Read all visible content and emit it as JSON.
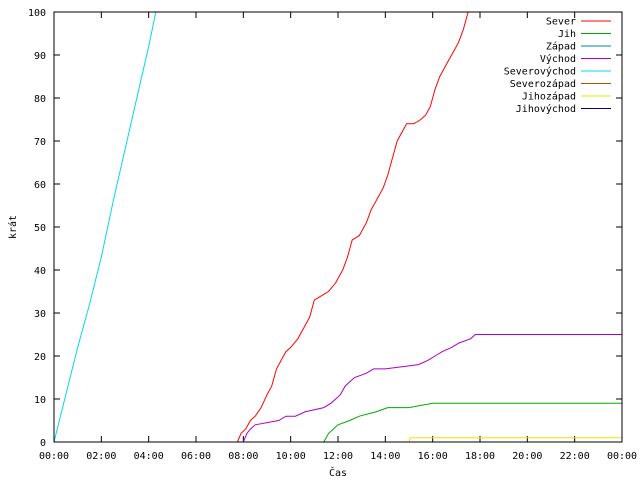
{
  "chart_data": {
    "type": "line",
    "xlabel": "Čas",
    "ylabel": "krát",
    "xlim": [
      0,
      24
    ],
    "ylim": [
      0,
      100
    ],
    "xticks": [
      {
        "value": 0,
        "label": "00:00"
      },
      {
        "value": 2,
        "label": "02:00"
      },
      {
        "value": 4,
        "label": "04:00"
      },
      {
        "value": 6,
        "label": "06:00"
      },
      {
        "value": 8,
        "label": "08:00"
      },
      {
        "value": 10,
        "label": "10:00"
      },
      {
        "value": 12,
        "label": "12:00"
      },
      {
        "value": 14,
        "label": "14:00"
      },
      {
        "value": 16,
        "label": "16:00"
      },
      {
        "value": 18,
        "label": "18:00"
      },
      {
        "value": 20,
        "label": "20:00"
      },
      {
        "value": 22,
        "label": "22:00"
      },
      {
        "value": 24,
        "label": "00:00"
      }
    ],
    "yticks": [
      0,
      10,
      20,
      30,
      40,
      50,
      60,
      70,
      80,
      90,
      100
    ],
    "grid": false,
    "legend_position": "top-right",
    "series": [
      {
        "name": "Sever",
        "color": "#ff0000",
        "points": [
          [
            0,
            0
          ],
          [
            7.75,
            0
          ],
          [
            7.9,
            2
          ],
          [
            8.1,
            3
          ],
          [
            8.3,
            5
          ],
          [
            8.5,
            6
          ],
          [
            8.75,
            8
          ],
          [
            9.0,
            11
          ],
          [
            9.2,
            13
          ],
          [
            9.4,
            17
          ],
          [
            9.6,
            19
          ],
          [
            9.8,
            21
          ],
          [
            10.0,
            22
          ],
          [
            10.3,
            24
          ],
          [
            10.6,
            27
          ],
          [
            10.8,
            29
          ],
          [
            11.0,
            33
          ],
          [
            11.3,
            34
          ],
          [
            11.6,
            35
          ],
          [
            11.9,
            37
          ],
          [
            12.2,
            40
          ],
          [
            12.4,
            43
          ],
          [
            12.6,
            47
          ],
          [
            12.9,
            48
          ],
          [
            13.2,
            51
          ],
          [
            13.4,
            54
          ],
          [
            13.6,
            56
          ],
          [
            13.9,
            59
          ],
          [
            14.1,
            62
          ],
          [
            14.3,
            66
          ],
          [
            14.5,
            70
          ],
          [
            14.7,
            72
          ],
          [
            14.9,
            74
          ],
          [
            15.2,
            74
          ],
          [
            15.5,
            75
          ],
          [
            15.7,
            76
          ],
          [
            15.9,
            78
          ],
          [
            16.1,
            82
          ],
          [
            16.3,
            85
          ],
          [
            16.5,
            87
          ],
          [
            16.7,
            89
          ],
          [
            16.9,
            91
          ],
          [
            17.1,
            93
          ],
          [
            17.3,
            96
          ],
          [
            17.45,
            99
          ],
          [
            17.5,
            100
          ]
        ]
      },
      {
        "name": "Jih",
        "color": "#00aa00",
        "points": [
          [
            0,
            0
          ],
          [
            11.4,
            0
          ],
          [
            11.5,
            1
          ],
          [
            11.6,
            2
          ],
          [
            11.8,
            3
          ],
          [
            12.0,
            4
          ],
          [
            12.5,
            5
          ],
          [
            12.9,
            6
          ],
          [
            13.6,
            7
          ],
          [
            14.1,
            8
          ],
          [
            15.0,
            8
          ],
          [
            16.0,
            9
          ],
          [
            24,
            9
          ]
        ]
      },
      {
        "name": "Západ",
        "color": "#0088a8",
        "points": []
      },
      {
        "name": "Východ",
        "color": "#aa00cc",
        "points": [
          [
            0,
            0
          ],
          [
            8.0,
            0
          ],
          [
            8.15,
            2
          ],
          [
            8.3,
            3
          ],
          [
            8.5,
            4
          ],
          [
            9.5,
            5
          ],
          [
            9.8,
            6
          ],
          [
            10.2,
            6
          ],
          [
            10.6,
            7
          ],
          [
            11.4,
            8
          ],
          [
            11.7,
            9
          ],
          [
            11.9,
            10
          ],
          [
            12.1,
            11
          ],
          [
            12.3,
            13
          ],
          [
            12.5,
            14
          ],
          [
            12.7,
            15
          ],
          [
            13.2,
            16
          ],
          [
            13.5,
            17
          ],
          [
            14.0,
            17
          ],
          [
            15.4,
            18
          ],
          [
            15.8,
            19
          ],
          [
            16.1,
            20
          ],
          [
            16.4,
            21
          ],
          [
            16.8,
            22
          ],
          [
            17.1,
            23
          ],
          [
            17.6,
            24
          ],
          [
            17.8,
            25
          ],
          [
            24,
            25
          ]
        ]
      },
      {
        "name": "Severovýchod",
        "color": "#00d8e8",
        "points": [
          [
            0,
            0
          ],
          [
            0.5,
            11
          ],
          [
            1.0,
            22
          ],
          [
            1.5,
            32
          ],
          [
            2.0,
            43
          ],
          [
            2.5,
            56
          ],
          [
            3.0,
            68
          ],
          [
            3.5,
            80
          ],
          [
            4.0,
            92
          ],
          [
            4.3,
            100
          ]
        ]
      },
      {
        "name": "Severozápad",
        "color": "#b05000",
        "points": []
      },
      {
        "name": "Jihozápad",
        "color": "#e8e800",
        "points": [
          [
            0,
            0
          ],
          [
            15.0,
            0
          ],
          [
            15.05,
            1
          ],
          [
            24,
            1
          ]
        ]
      },
      {
        "name": "Jihovýchod",
        "color": "#000088",
        "points": []
      }
    ]
  }
}
